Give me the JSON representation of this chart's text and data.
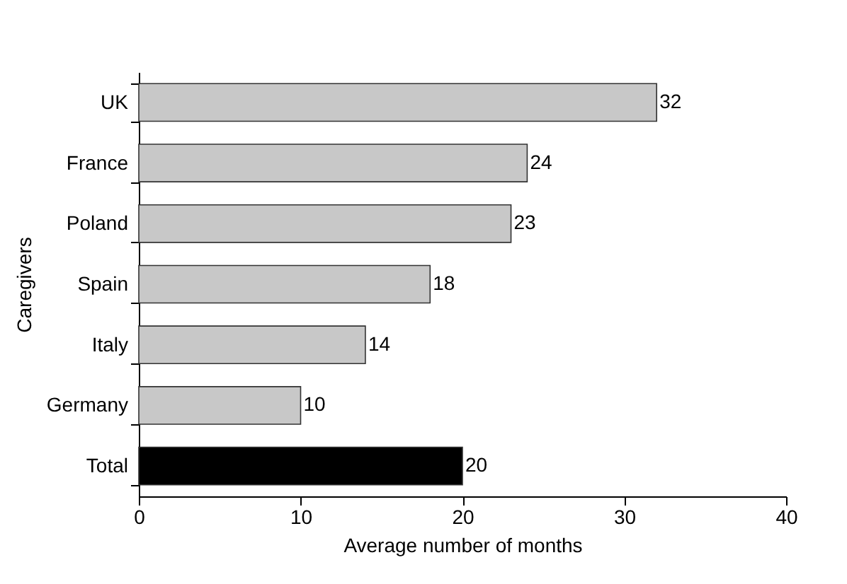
{
  "chart_data": {
    "type": "bar",
    "orientation": "horizontal",
    "xlabel": "Average number of months",
    "ylabel": "Caregivers",
    "categories": [
      "UK",
      "France",
      "Poland",
      "Spain",
      "Italy",
      "Germany",
      "Total"
    ],
    "values": [
      32,
      24,
      23,
      18,
      14,
      10,
      20
    ],
    "colors": [
      "#c8c8c8",
      "#c8c8c8",
      "#c8c8c8",
      "#c8c8c8",
      "#c8c8c8",
      "#c8c8c8",
      "#000000"
    ],
    "xlim": [
      0,
      40
    ],
    "xticks": [
      0,
      10,
      20,
      30,
      40
    ],
    "data_labels": true,
    "grid": false
  }
}
